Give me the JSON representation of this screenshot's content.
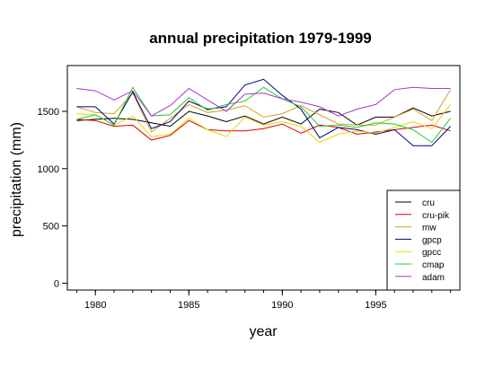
{
  "chart_data": {
    "type": "line",
    "title": "annual precipitation 1979-1999",
    "xlabel": "year",
    "ylabel": "precipitation (mm)",
    "xlim": [
      1978.5,
      1999.5
    ],
    "ylim": [
      -60,
      1900
    ],
    "x_ticks": [
      1980,
      1985,
      1990,
      1995
    ],
    "y_ticks": [
      0,
      500,
      1000,
      1500
    ],
    "grid": false,
    "legend_position": "bottom-right",
    "x": [
      1979,
      1980,
      1981,
      1982,
      1983,
      1984,
      1985,
      1986,
      1987,
      1988,
      1989,
      1990,
      1991,
      1992,
      1993,
      1994,
      1995,
      1996,
      1997,
      1998,
      1999
    ],
    "series": [
      {
        "name": "cru",
        "color": "#000000",
        "values": [
          1420,
          1430,
          1440,
          1430,
          1400,
          1370,
          1500,
          1460,
          1410,
          1460,
          1390,
          1450,
          1390,
          1520,
          1490,
          1380,
          1450,
          1450,
          1530,
          1460,
          1500
        ]
      },
      {
        "name": "cru-pik",
        "color": "#dd0000",
        "values": [
          1430,
          1420,
          1370,
          1380,
          1250,
          1290,
          1420,
          1340,
          1330,
          1330,
          1350,
          1390,
          1310,
          1380,
          1360,
          1300,
          1320,
          1340,
          1360,
          1380,
          1330
        ]
      },
      {
        "name": "mw",
        "color": "#d4a017",
        "values": [
          1540,
          1490,
          1480,
          1660,
          1320,
          1440,
          1560,
          1490,
          1510,
          1550,
          1450,
          1480,
          1550,
          1470,
          1390,
          1380,
          1380,
          1450,
          1520,
          1420,
          1690
        ]
      },
      {
        "name": "gpcp",
        "color": "#000080",
        "values": [
          1540,
          1540,
          1390,
          1670,
          1350,
          1410,
          1590,
          1520,
          1540,
          1730,
          1780,
          1640,
          1520,
          1270,
          1360,
          1340,
          1300,
          1340,
          1200,
          1200,
          1370
        ]
      },
      {
        "name": "gpcc",
        "color": "#e8d800",
        "values": [
          1480,
          1470,
          1380,
          1460,
          1280,
          1300,
          1440,
          1340,
          1280,
          1450,
          1380,
          1410,
          1370,
          1230,
          1300,
          1330,
          1310,
          1360,
          1410,
          1350,
          1560
        ]
      },
      {
        "name": "cmap",
        "color": "#22cc22",
        "values": [
          1430,
          1470,
          1380,
          1710,
          1460,
          1470,
          1620,
          1510,
          1560,
          1590,
          1710,
          1610,
          1540,
          1370,
          1380,
          1360,
          1400,
          1390,
          1340,
          1230,
          1440
        ]
      },
      {
        "name": "adam",
        "color": "#aa33cc",
        "values": [
          1700,
          1680,
          1600,
          1680,
          1460,
          1550,
          1700,
          1600,
          1500,
          1650,
          1660,
          1610,
          1580,
          1540,
          1460,
          1520,
          1560,
          1690,
          1710,
          1700,
          1700
        ]
      }
    ]
  }
}
